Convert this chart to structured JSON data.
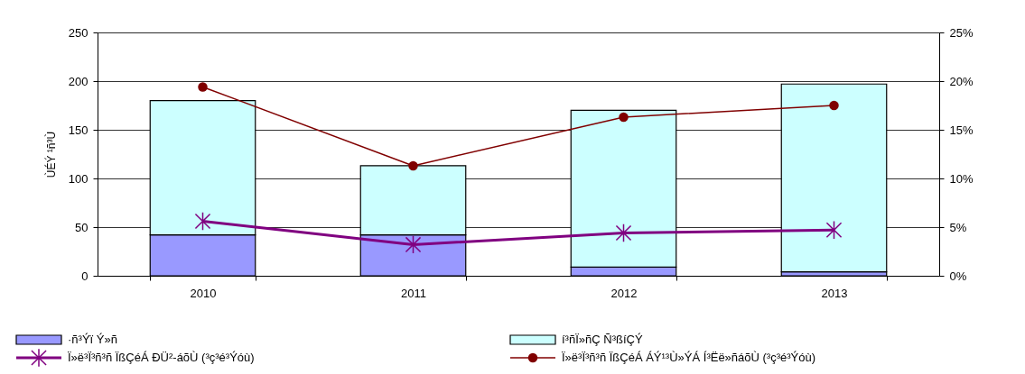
{
  "chart_data": {
    "type": "bar",
    "stacked": true,
    "ylabel": "ÙÉÝ ¹ñ³Ù",
    "categories": [
      "2010",
      "2011",
      "2012",
      "2013"
    ],
    "series": [
      {
        "name": "·ñ³Ýï Ý»ñ",
        "color": "#9999ff",
        "values": [
          42,
          42,
          9,
          4
        ]
      },
      {
        "name": "í³ñÏ»ñÇ Ñ³ßíÇÝ",
        "color": "#ccffff",
        "values": [
          138,
          71,
          161,
          193
        ]
      },
      {
        "name": "Ï»ë³Ï³ñ³ñ ÏßÇéÁ ÐÜ²-áõÙ (³ç³é³Ýóù)",
        "color": "#800080",
        "type": "line",
        "axis": "y2",
        "marker": "cross",
        "values": [
          5.6,
          3.2,
          4.4,
          4.7
        ]
      },
      {
        "name": "Ï»ë³Ï³ñ³ñ ÏßÇéÁ ÁÝ¹³Ù»ÝÁ Í³Ëë»ñáõÙ (³ç³é³Ýóù)",
        "color": "#800000",
        "type": "line",
        "axis": "y2",
        "marker": "circle",
        "values": [
          19.4,
          11.3,
          16.3,
          17.5
        ]
      }
    ],
    "ylim": [
      0,
      250
    ],
    "yticks": [
      0,
      50,
      100,
      150,
      200,
      250
    ],
    "y2lim": [
      0,
      25
    ],
    "y2ticks": [
      {
        "value": 0,
        "label": "0%"
      },
      {
        "value": 5,
        "label": "5%"
      },
      {
        "value": 10,
        "label": "10%"
      },
      {
        "value": 15,
        "label": "15%"
      },
      {
        "value": 20,
        "label": "20%"
      },
      {
        "value": 25,
        "label": "25%"
      }
    ],
    "grid": "y",
    "legend": "bottom"
  }
}
